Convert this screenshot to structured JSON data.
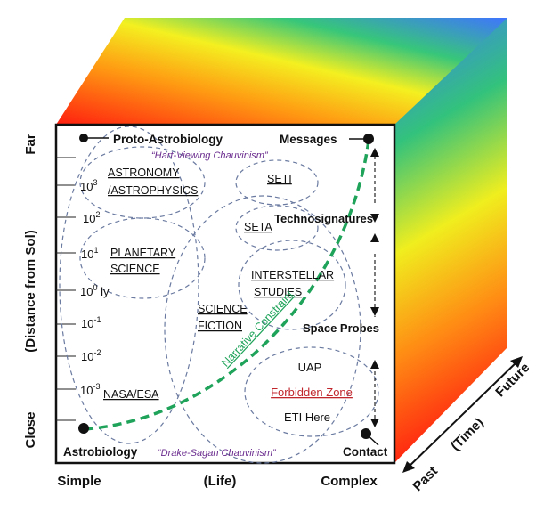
{
  "axes": {
    "y_top": "Far",
    "y_bottom": "Close",
    "y_title": "(Distance from Sol)",
    "x_left": "Simple",
    "x_mid": "(Life)",
    "x_right": "Complex",
    "z_past": "Past",
    "z_mid": "(Time)",
    "z_future": "Future"
  },
  "ticks": {
    "t3": {
      "base": "10",
      "exp": "3"
    },
    "t2": {
      "base": "10",
      "exp": "2"
    },
    "t1": {
      "base": "10",
      "exp": "1"
    },
    "t0": {
      "base": "10",
      "exp": "0",
      "unit": " ly"
    },
    "tm1": {
      "base": "10",
      "exp": "-1"
    },
    "tm2": {
      "base": "10",
      "exp": "-2"
    },
    "tm3": {
      "base": "10",
      "exp": "-3"
    }
  },
  "corners": {
    "proto": "Proto-Astrobiology",
    "messages": "Messages",
    "astrobiology": "Astrobiology",
    "contact": "Contact"
  },
  "chauvinism": {
    "hart": "“Hart-Viewing Chauvinism”",
    "drake": "“Drake-Sagan Chauvinism”"
  },
  "fields": {
    "astronomy_1": "ASTRONOMY",
    "astronomy_2": "/ASTROPHYSICS",
    "planetary_1": "PLANETARY",
    "planetary_2": "SCIENCE",
    "nasa": "NASA/ESA",
    "science_1": "SCIENCE",
    "science_2": "FICTION",
    "seti": "SETI",
    "seta": "SETA",
    "interstellar_1": "INTERSTELLAR",
    "interstellar_2": "STUDIES"
  },
  "stages": {
    "technosignatures": "Technosignatures",
    "space_probes": "Space Probes"
  },
  "zone": {
    "uap": "UAP",
    "forbidden": "Forbidden Zone",
    "eti": "ETI Here"
  },
  "curve_label": "Narrative Constraint",
  "colors": {
    "curve": "#1fa35a",
    "forbidden": "#c0262c",
    "chauvinism": "#6b2d8f",
    "ellipse": "#6a7aa0"
  }
}
